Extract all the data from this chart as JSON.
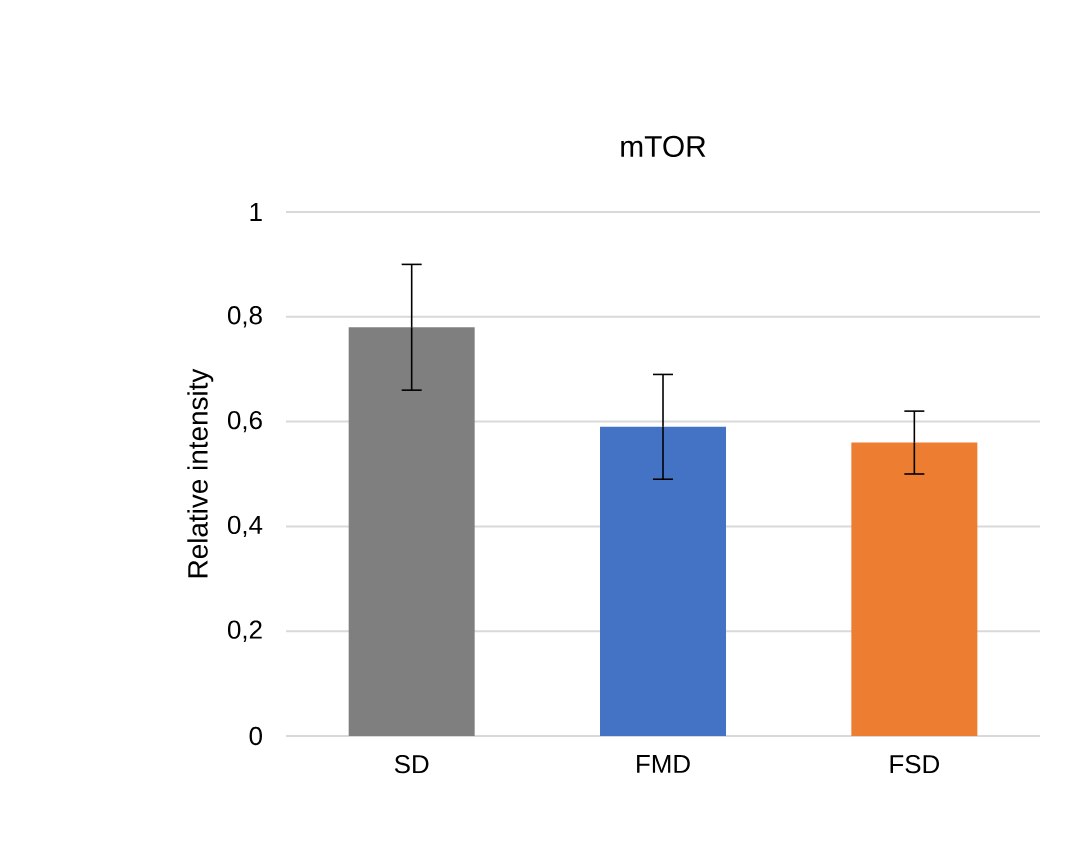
{
  "chart_data": {
    "type": "bar",
    "title": "mTOR",
    "ylabel": "Relative intensity",
    "categories": [
      "SD",
      "FMD",
      "FSD"
    ],
    "values": [
      0.78,
      0.59,
      0.56
    ],
    "colors": [
      "#7f7f7f",
      "#4472c4",
      "#ed7d31"
    ],
    "errors": [
      0.12,
      0.1,
      0.06
    ],
    "ylim": [
      0,
      1
    ],
    "yticks": [
      {
        "value": 0,
        "label": "0"
      },
      {
        "value": 0.2,
        "label": "0,2"
      },
      {
        "value": 0.4,
        "label": "0,4"
      },
      {
        "value": 0.6,
        "label": "0,6"
      },
      {
        "value": 0.8,
        "label": "0,8"
      },
      {
        "value": 1,
        "label": "1"
      }
    ],
    "grid": "y"
  }
}
